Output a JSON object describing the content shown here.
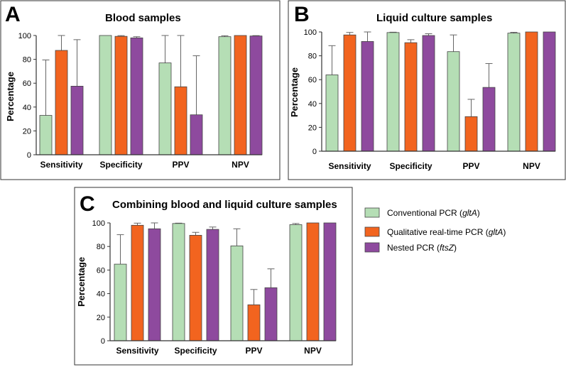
{
  "colors": {
    "conventional": "#b5deb5",
    "realtime": "#f2641f",
    "nested": "#8e4a9e"
  },
  "legend": [
    {
      "key": "conventional",
      "pre": "Conventional PCR (",
      "it": "gltA",
      "post": ")"
    },
    {
      "key": "realtime",
      "pre": "Qualitative real-time PCR (",
      "it": "gltA",
      "post": ")"
    },
    {
      "key": "nested",
      "pre": "Nested PCR (",
      "it": "ftsZ",
      "post": ")"
    }
  ],
  "chart_data": [
    {
      "type": "bar",
      "panel": "A",
      "title": "Blood samples",
      "ylabel": "Percentage",
      "ylim": [
        0,
        100
      ],
      "yticks": [
        0,
        20,
        40,
        60,
        80,
        100
      ],
      "categories": [
        "Sensitivity",
        "Specificity",
        "PPV",
        "NPV"
      ],
      "series": [
        {
          "name": "Conventional PCR (gltA)",
          "key": "conventional",
          "values": [
            33,
            100,
            77,
            99
          ],
          "err_upper": [
            79.5,
            100,
            100,
            99.8
          ]
        },
        {
          "name": "Qualitative real-time PCR (gltA)",
          "key": "realtime",
          "values": [
            87.5,
            99.3,
            57,
            100
          ],
          "err_upper": [
            100,
            99.9,
            100,
            100
          ]
        },
        {
          "name": "Nested PCR (ftsZ)",
          "key": "nested",
          "values": [
            57.5,
            98,
            33.5,
            99.6
          ],
          "err_upper": [
            96.5,
            99,
            83,
            99.9
          ]
        }
      ]
    },
    {
      "type": "bar",
      "panel": "B",
      "title": "Liquid culture samples",
      "ylabel": "Percentage",
      "ylim": [
        0,
        100
      ],
      "yticks": [
        0,
        20,
        40,
        60,
        80,
        100
      ],
      "categories": [
        "Sensitivity",
        "Specificity",
        "PPV",
        "NPV"
      ],
      "series": [
        {
          "name": "Conventional PCR (gltA)",
          "key": "conventional",
          "values": [
            64,
            99.5,
            83.5,
            99
          ],
          "err_upper": [
            88.5,
            99.8,
            97.5,
            99.7
          ]
        },
        {
          "name": "Qualitative real-time PCR (gltA)",
          "key": "realtime",
          "values": [
            97.5,
            91,
            29,
            100
          ],
          "err_upper": [
            99.6,
            93.5,
            43.5,
            100
          ]
        },
        {
          "name": "Nested PCR (ftsZ)",
          "key": "nested",
          "values": [
            92,
            97,
            53.5,
            100
          ],
          "err_upper": [
            100,
            98.5,
            73.5,
            100
          ]
        }
      ]
    },
    {
      "type": "bar",
      "panel": "C",
      "title": "Combining blood and liquid culture samples",
      "ylabel": "Percentage",
      "ylim": [
        0,
        100
      ],
      "yticks": [
        0,
        20,
        40,
        60,
        80,
        100
      ],
      "categories": [
        "Sensitivity",
        "Specificity",
        "PPV",
        "NPV"
      ],
      "series": [
        {
          "name": "Conventional PCR (gltA)",
          "key": "conventional",
          "values": [
            65,
            99.5,
            80.5,
            98.5
          ],
          "err_upper": [
            90,
            99.8,
            95,
            99.5
          ]
        },
        {
          "name": "Qualitative real-time PCR (gltA)",
          "key": "realtime",
          "values": [
            98,
            89.5,
            30.5,
            100
          ],
          "err_upper": [
            99.8,
            92,
            43.5,
            100
          ]
        },
        {
          "name": "Nested PCR (ftsZ)",
          "key": "nested",
          "values": [
            95,
            94.5,
            45,
            100
          ],
          "err_upper": [
            100,
            96.5,
            61,
            100
          ]
        }
      ]
    }
  ]
}
